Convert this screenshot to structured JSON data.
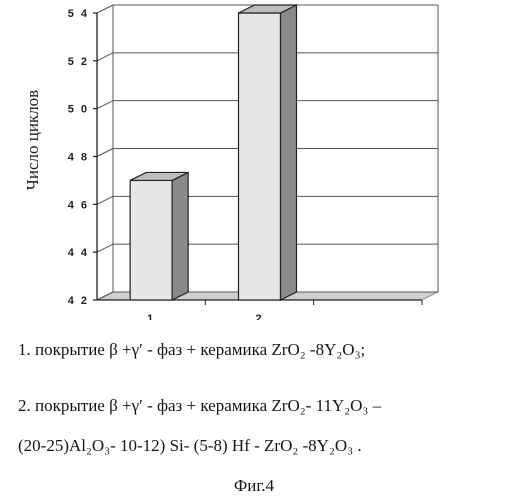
{
  "chart_data": {
    "type": "bar",
    "ylabel": "Число циклов",
    "categories": [
      "1",
      "2",
      ""
    ],
    "values": [
      47,
      54,
      null
    ],
    "ylim": [
      42,
      54
    ],
    "yticks": [
      "4 2",
      "4 4",
      "4 6",
      "4 8",
      "5 0",
      "5 2",
      "5 4"
    ],
    "grid": true,
    "colors": {
      "bar_front": "#e6e6e6",
      "bar_side": "#8a8a8a",
      "bar_top": "#bdbdbd",
      "floor": "#cfcfcf",
      "grid": "#555555"
    }
  },
  "caption": {
    "line1": "1. покрытие β +γ′ - фаз + керамика ZrO₂ -8Y₂O₃;",
    "line2": "2. покрытие β +γ′ - фаз + керамика ZrO₂- 11Y₂O₃ –",
    "line3": "(20-25)Al₂O₃- 10-12) Si- (5-8) Hf  - ZrO₂ -8Y₂O₃ .",
    "figure": "Фиг.4"
  }
}
